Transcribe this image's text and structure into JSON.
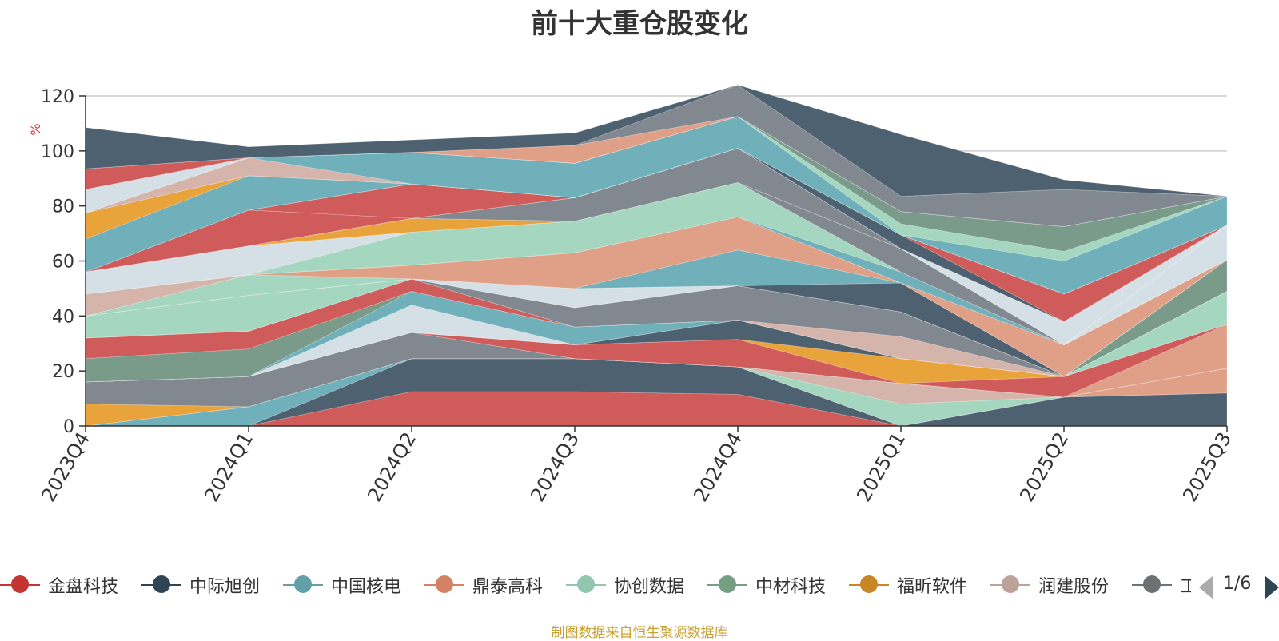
{
  "chart_data": {
    "type": "area",
    "title": "前十大重仓股变化",
    "ylabel": "%",
    "ylim": [
      0,
      120
    ],
    "yticks": [
      0,
      20,
      40,
      60,
      80,
      100,
      120
    ],
    "grid": true,
    "categories": [
      "2023Q4",
      "2024Q1",
      "2024Q2",
      "2024Q3",
      "2024Q4",
      "2025Q1",
      "2025Q2",
      "2025Q3"
    ],
    "layers": [
      {
        "color": "#d05b5b",
        "values": [
          0,
          0,
          12.5,
          12.5,
          11.5,
          0,
          0,
          0
        ]
      },
      {
        "color": "#4e6170",
        "values": [
          0,
          0,
          12,
          12,
          10,
          0,
          10.5,
          12
        ]
      },
      {
        "color": "#6fb0bb",
        "values": [
          0,
          7,
          0,
          0,
          0,
          0,
          0,
          0
        ]
      },
      {
        "color": "#e0a088",
        "values": [
          0,
          0,
          0,
          0,
          0,
          0,
          0,
          9
        ]
      },
      {
        "color": "#a5d7c0",
        "values": [
          0,
          0,
          0,
          0,
          0,
          8,
          0,
          0
        ]
      },
      {
        "color": "#d5b5ab",
        "values": [
          0,
          0,
          0,
          0,
          0,
          7.5,
          0,
          0
        ]
      },
      {
        "color": "#e8a33a",
        "values": [
          8,
          0,
          0,
          0,
          0,
          0,
          0,
          0
        ]
      },
      {
        "color": "#828890",
        "values": [
          8,
          11,
          9.5,
          0,
          0,
          0,
          0,
          0
        ]
      },
      {
        "color": "#e0a088",
        "values": [
          0,
          0,
          0,
          0,
          0,
          0,
          0,
          16
        ]
      },
      {
        "color": "#d05b5b",
        "values": [
          0,
          0,
          0,
          5,
          10,
          0,
          7.5,
          0
        ]
      },
      {
        "color": "#e8a33a",
        "values": [
          0,
          0,
          0,
          0,
          0,
          9,
          0,
          0
        ]
      },
      {
        "color": "#4e6170",
        "values": [
          0,
          0,
          0,
          0,
          7,
          0,
          0,
          0
        ]
      },
      {
        "color": "#a5d7c0",
        "values": [
          0,
          0,
          0,
          0,
          0,
          0,
          0,
          12
        ]
      },
      {
        "color": "#d5e0e6",
        "values": [
          0,
          0,
          10,
          0,
          0,
          0,
          0,
          0
        ]
      },
      {
        "color": "#6fb0bb",
        "values": [
          0,
          0,
          5,
          6.5,
          0,
          0,
          0,
          0
        ]
      },
      {
        "color": "#7a9a8a",
        "values": [
          8.5,
          10,
          0,
          0,
          0,
          0,
          0,
          0
        ]
      },
      {
        "color": "#d05b5b",
        "values": [
          7.5,
          6.5,
          4.5,
          0,
          0,
          0,
          0,
          0
        ]
      },
      {
        "color": "#d5b5ab",
        "values": [
          0,
          0,
          0,
          0,
          0,
          8,
          0,
          0
        ]
      },
      {
        "color": "#828890",
        "values": [
          0,
          0,
          0,
          7,
          12.5,
          9,
          0,
          0
        ]
      },
      {
        "color": "#7a9a8a",
        "values": [
          0,
          0,
          0,
          0,
          0,
          0,
          0,
          11.5
        ]
      },
      {
        "color": "#a5d7c0",
        "values": [
          8,
          13,
          0,
          0,
          0,
          0,
          0,
          0
        ]
      },
      {
        "color": "#d5e0e6",
        "values": [
          0,
          0,
          0,
          7,
          0,
          0,
          0,
          0
        ]
      },
      {
        "color": "#4e6170",
        "values": [
          0,
          0,
          0,
          0,
          0,
          10.5,
          0,
          0
        ]
      },
      {
        "color": "#6fb0bb",
        "values": [
          0,
          0,
          0,
          0,
          13,
          0,
          0,
          0
        ]
      },
      {
        "color": "#a5d7c0",
        "values": [
          0,
          7.5,
          0,
          0,
          0,
          0,
          0,
          0
        ]
      },
      {
        "color": "#e0a088",
        "values": [
          0,
          0,
          5,
          13,
          12,
          0,
          11.5,
          0
        ]
      },
      {
        "color": "#d5b5ab",
        "values": [
          8,
          0,
          0,
          0,
          0,
          0,
          0,
          0
        ]
      },
      {
        "color": "#6fb0bb",
        "values": [
          0,
          0,
          0,
          0,
          0,
          4,
          0,
          0
        ]
      },
      {
        "color": "#a5d7c0",
        "values": [
          0,
          0,
          12,
          11.5,
          12.5,
          0,
          0,
          0
        ]
      },
      {
        "color": "#d5e0e6",
        "values": [
          8,
          10.5,
          0,
          0,
          0,
          0,
          0,
          0
        ]
      },
      {
        "color": "#828890",
        "values": [
          0,
          0,
          0,
          0,
          0,
          8.5,
          0,
          0
        ]
      },
      {
        "color": "#e8a33a",
        "values": [
          0,
          0,
          5,
          0,
          0,
          0,
          0,
          0
        ]
      },
      {
        "color": "#d5e0e6",
        "values": [
          0,
          0,
          0,
          0,
          0,
          0,
          0,
          12.5
        ]
      },
      {
        "color": "#828890",
        "values": [
          0,
          0,
          0,
          8.5,
          12.5,
          0,
          0,
          0
        ]
      },
      {
        "color": "#d5e0e6",
        "values": [
          0,
          0,
          0,
          0,
          0,
          0,
          8.5,
          0
        ]
      },
      {
        "color": "#d05b5b",
        "values": [
          0,
          13,
          0,
          0,
          0,
          0,
          0,
          0
        ]
      },
      {
        "color": "#d05b5b",
        "values": [
          0,
          0,
          12.5,
          0,
          0,
          0,
          0,
          0
        ]
      },
      {
        "color": "#4e6170",
        "values": [
          0,
          0,
          0,
          0,
          0,
          5,
          0,
          0
        ]
      },
      {
        "color": "#d05b5b",
        "values": [
          0,
          0,
          0,
          0,
          0,
          0,
          10,
          0
        ]
      },
      {
        "color": "#6fb0bb",
        "values": [
          12,
          12.5,
          0,
          0,
          0,
          0,
          0,
          0
        ]
      },
      {
        "color": "#e8a33a",
        "values": [
          9.5,
          0,
          0,
          0,
          0,
          0,
          0,
          0
        ]
      },
      {
        "color": "#d05b5b",
        "values": [
          0,
          0,
          0,
          0,
          0,
          0,
          0,
          0
        ]
      },
      {
        "color": "#d5b5ab",
        "values": [
          0,
          6.5,
          0,
          0,
          0,
          0,
          0,
          0
        ]
      },
      {
        "color": "#6fb0bb",
        "values": [
          0,
          0,
          11.5,
          12.5,
          11.5,
          0,
          12,
          10.5
        ]
      },
      {
        "color": "#a5d7c0",
        "values": [
          0,
          0,
          0,
          0,
          0,
          4,
          3.5,
          0
        ]
      },
      {
        "color": "#7a9a8a",
        "values": [
          0,
          0,
          0,
          0,
          0,
          4.5,
          9,
          0
        ]
      },
      {
        "color": "#d5e0e6",
        "values": [
          8.5,
          0,
          0,
          0,
          0,
          0,
          0,
          0
        ]
      },
      {
        "color": "#d05b5b",
        "values": [
          7.5,
          0,
          0,
          0,
          0,
          0,
          0,
          0
        ]
      },
      {
        "color": "#e0a088",
        "values": [
          0,
          0,
          0,
          6.5,
          0,
          0,
          0,
          0
        ]
      },
      {
        "color": "#828890",
        "values": [
          0,
          0,
          0,
          0,
          11.5,
          5.5,
          13.5,
          0
        ]
      },
      {
        "color": "#4e6170",
        "values": [
          15,
          4,
          4.5,
          4.5,
          0,
          22.5,
          3.5,
          0
        ]
      }
    ]
  },
  "legend": {
    "items": [
      {
        "label": "金盘科技",
        "color": "#c23531"
      },
      {
        "label": "中际旭创",
        "color": "#2f4554"
      },
      {
        "label": "中国核电",
        "color": "#61a0a8"
      },
      {
        "label": "鼎泰高科",
        "color": "#d48265"
      },
      {
        "label": "协创数据",
        "color": "#91c7ae"
      },
      {
        "label": "中材科技",
        "color": "#749f83"
      },
      {
        "label": "福昕软件",
        "color": "#ca8622"
      },
      {
        "label": "润建股份",
        "color": "#bda29a"
      },
      {
        "label": "工",
        "color": "#6e7074"
      }
    ],
    "page_indicator": "1/6"
  },
  "source_note": "制图数据来自恒生聚源数据库"
}
